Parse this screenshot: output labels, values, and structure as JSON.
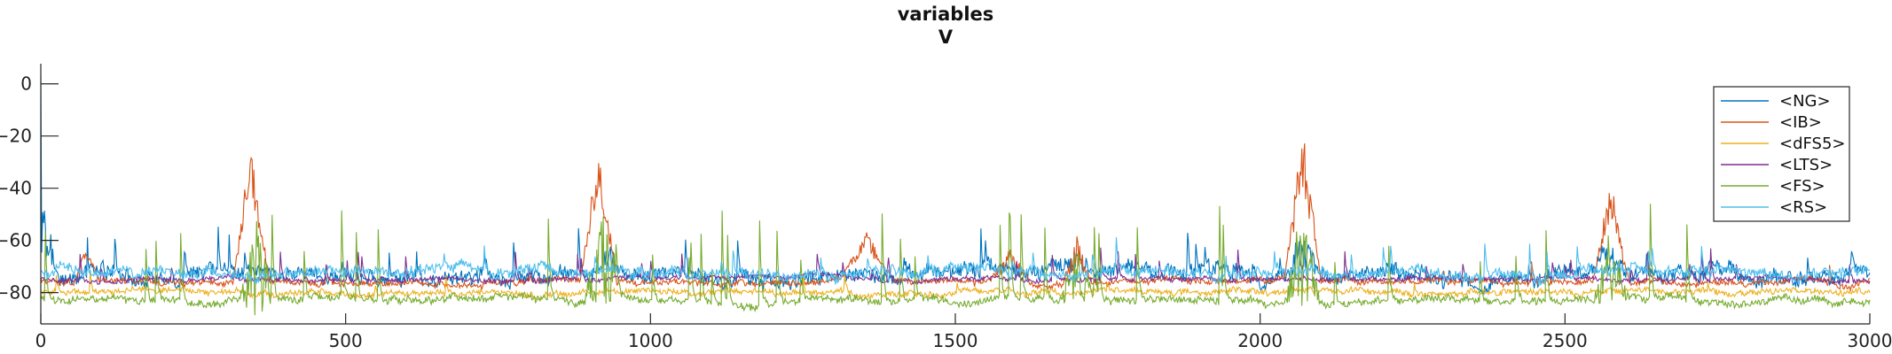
{
  "chart_data": {
    "type": "line",
    "title": [
      "variables",
      "V"
    ],
    "xlabel": "",
    "ylabel": "",
    "xlim": [
      0,
      3000
    ],
    "ylim": [
      -92,
      5
    ],
    "xticks": [
      0,
      500,
      1000,
      1500,
      2000,
      2500,
      3000
    ],
    "yticks": [
      0,
      -20,
      -40,
      -60,
      -80
    ],
    "grid": false,
    "legend_position": "top-right",
    "series": [
      {
        "name": "<NG>",
        "color": "#0072BD",
        "baseline": -73,
        "noise": 5,
        "spike_rate": 0.012,
        "spike_height": 14,
        "events": [
          [
            0,
            30,
            -55,
            14
          ],
          [
            930,
            30,
            -66,
            6
          ],
          [
            1700,
            25,
            -68,
            6
          ],
          [
            2070,
            30,
            -64,
            8
          ],
          [
            2570,
            30,
            -64,
            8
          ]
        ]
      },
      {
        "name": "<IB>",
        "color": "#D95319",
        "baseline": -76,
        "noise": 2,
        "spike_rate": 0.004,
        "spike_height": 8,
        "events": [
          [
            75,
            20,
            -64,
            4
          ],
          [
            345,
            30,
            -32,
            10
          ],
          [
            915,
            30,
            -32,
            10
          ],
          [
            1355,
            45,
            -60,
            4
          ],
          [
            1590,
            35,
            -67,
            4
          ],
          [
            1700,
            25,
            -64,
            6
          ],
          [
            2070,
            30,
            -28,
            12
          ],
          [
            2575,
            30,
            -44,
            8
          ]
        ]
      },
      {
        "name": "<dFS5>",
        "color": "#EDB120",
        "baseline": -80,
        "noise": 2,
        "spike_rate": 0.004,
        "spike_height": 7,
        "events": []
      },
      {
        "name": "<LTS>",
        "color": "#7E2F8E",
        "baseline": -75,
        "noise": 1.5,
        "spike_rate": 0.02,
        "spike_height": 10,
        "events": []
      },
      {
        "name": "<FS>",
        "color": "#77AC30",
        "baseline": -83,
        "noise": 2.5,
        "spike_rate": 0.025,
        "spike_height": 30,
        "events": [
          [
            355,
            30,
            -70,
            20
          ],
          [
            920,
            30,
            -68,
            20
          ],
          [
            1700,
            30,
            -72,
            14
          ],
          [
            2070,
            30,
            -68,
            18
          ],
          [
            2575,
            30,
            -70,
            16
          ]
        ]
      },
      {
        "name": "<RS>",
        "color": "#4DBEEE",
        "baseline": -72,
        "noise": 3.5,
        "spike_rate": 0.015,
        "spike_height": 10,
        "events": []
      }
    ]
  }
}
